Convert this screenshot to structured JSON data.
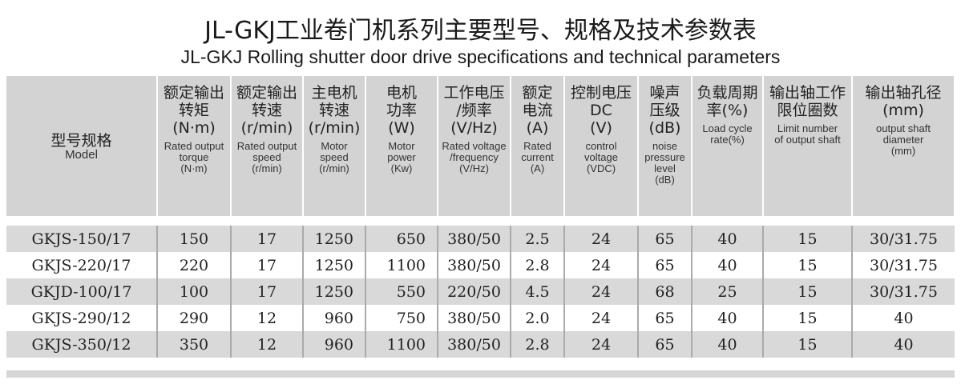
{
  "title_cn": "JL-GKJ工业卷门机系列主要型号、规格及技术参数表",
  "title_en": "JL-GKJ  Rolling shutter door drive specifications and technical parameters",
  "columns": [
    {
      "cn": "型号规格",
      "en": "Model"
    },
    {
      "cn": "额定输出\n转矩\n(N·m)",
      "en": "Rated output\ntorque\n(N·m)"
    },
    {
      "cn": "额定输出\n转速\n(r/min)",
      "en": "Rated output\nspeed\n(r/min)"
    },
    {
      "cn": "主电机\n转速\n(r/min)",
      "en": "Motor\nspeed\n(r/min)"
    },
    {
      "cn": "电机\n功率\n(W)",
      "en": "Motor\npower\n(Kw)"
    },
    {
      "cn": "工作电压\n/频率\n(V/Hz)",
      "en": "Rated voltage\n/frequency\n(V/Hz)"
    },
    {
      "cn": "额定\n电流\n(A)",
      "en": "Rated\ncurrent\n(A)"
    },
    {
      "cn": "控制电压\nDC\n(V)",
      "en": "control\nvoltage\n(VDC)"
    },
    {
      "cn": "噪声\n压级\n(dB)",
      "en": "noise\npressure\nlevel\n(dB)"
    },
    {
      "cn": "负载周期\n率(%)",
      "en": "Load cycle\nrate(%)"
    },
    {
      "cn": "输出轴工作\n限位圈数",
      "en": "Limit number\nof output shaft"
    },
    {
      "cn": "输出轴孔径\n(mm)",
      "en": "output shaft\ndiameter\n(mm)"
    }
  ],
  "rows": [
    [
      "GKJS-150/17",
      "150",
      "17",
      "1250",
      "650",
      "380/50",
      "2.5",
      "24",
      "65",
      "40",
      "15",
      "30/31.75"
    ],
    [
      "GKJS-220/17",
      "220",
      "17",
      "1250",
      "1100",
      "380/50",
      "2.8",
      "24",
      "65",
      "40",
      "15",
      "30/31.75"
    ],
    [
      "GKJD-100/17",
      "100",
      "17",
      "1250",
      "550",
      "220/50",
      "4.5",
      "24",
      "68",
      "25",
      "15",
      "30/31.75"
    ],
    [
      "GKJS-290/12",
      "290",
      "12",
      "960",
      "750",
      "380/50",
      "2.0",
      "24",
      "65",
      "40",
      "15",
      "40"
    ],
    [
      "GKJS-350/12",
      "350",
      "12",
      "960",
      "1100",
      "380/50",
      "2.8",
      "24",
      "65",
      "40",
      "15",
      "40"
    ]
  ]
}
